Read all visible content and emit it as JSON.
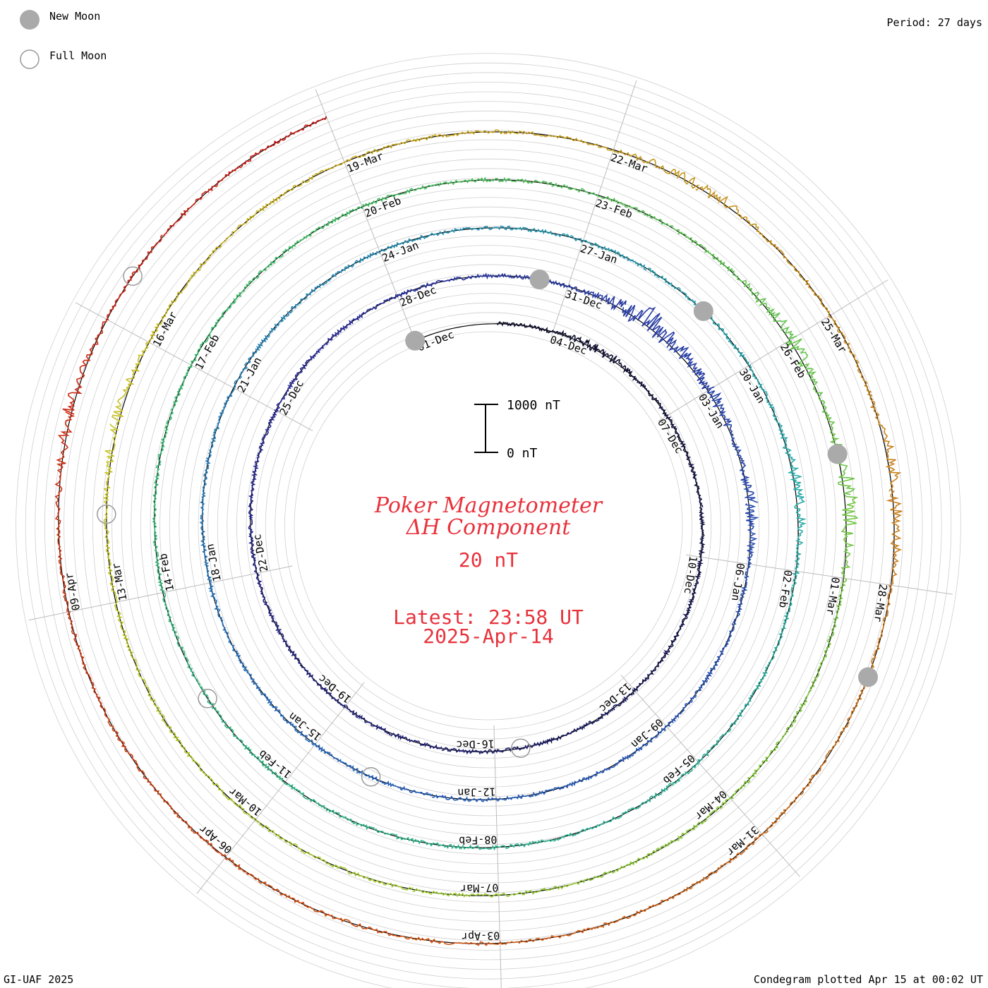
{
  "header": {
    "legend_new_moon": "New Moon",
    "legend_full_moon": "Full Moon",
    "period": "Period: 27 days"
  },
  "footer": {
    "credit": "GI-UAF 2025",
    "plotted": "Condegram plotted Apr 15 at 00:02 UT"
  },
  "center": {
    "title_line1": "Poker Magnetometer",
    "title_line2": "ΔH Component",
    "scale_value": "20 nT",
    "latest_line1": "Latest: 23:58 UT",
    "latest_line2": "2025-Apr-14",
    "scale_bar_top": "1000 nT",
    "scale_bar_bottom": "0 nT"
  },
  "colors": {
    "title": "#e8323c",
    "grid": "#bbbbbb",
    "moon_new": "#aaaaaa",
    "moon_full": "#999999"
  },
  "chart_data": {
    "type": "line",
    "title": "Poker Magnetometer ΔH Component",
    "period_days": 27,
    "scale_nT": 20,
    "spiral_labels": [
      {
        "label": "01-Dec",
        "day": 0
      },
      {
        "label": "04-Dec",
        "day": 3
      },
      {
        "label": "07-Dec",
        "day": 6
      },
      {
        "label": "10-Dec",
        "day": 9
      },
      {
        "label": "13-Dec",
        "day": 12
      },
      {
        "label": "16-Dec",
        "day": 15
      },
      {
        "label": "19-Dec",
        "day": 18
      },
      {
        "label": "22-Dec",
        "day": 21
      },
      {
        "label": "25-Dec",
        "day": 24
      },
      {
        "label": "28-Dec",
        "day": 27
      },
      {
        "label": "31-Dec",
        "day": 30
      },
      {
        "label": "03-Jan",
        "day": 33
      },
      {
        "label": "06-Jan",
        "day": 36
      },
      {
        "label": "09-Jan",
        "day": 39
      },
      {
        "label": "12-Jan",
        "day": 42
      },
      {
        "label": "15-Jan",
        "day": 45
      },
      {
        "label": "18-Jan",
        "day": 48
      },
      {
        "label": "21-Jan",
        "day": 51
      },
      {
        "label": "24-Jan",
        "day": 54
      },
      {
        "label": "27-Jan",
        "day": 57
      },
      {
        "label": "30-Jan",
        "day": 60
      },
      {
        "label": "02-Feb",
        "day": 63
      },
      {
        "label": "05-Feb",
        "day": 66
      },
      {
        "label": "08-Feb",
        "day": 69
      },
      {
        "label": "11-Feb",
        "day": 72
      },
      {
        "label": "14-Feb",
        "day": 75
      },
      {
        "label": "17-Feb",
        "day": 78
      },
      {
        "label": "20-Feb",
        "day": 81
      },
      {
        "label": "23-Feb",
        "day": 84
      },
      {
        "label": "26-Feb",
        "day": 87
      },
      {
        "label": "01-Mar",
        "day": 90
      },
      {
        "label": "04-Mar",
        "day": 93
      },
      {
        "label": "07-Mar",
        "day": 96
      },
      {
        "label": "10-Mar",
        "day": 99
      },
      {
        "label": "13-Mar",
        "day": 102
      },
      {
        "label": "16-Mar",
        "day": 105
      },
      {
        "label": "19-Mar",
        "day": 108
      },
      {
        "label": "22-Mar",
        "day": 111
      },
      {
        "label": "25-Mar",
        "day": 114
      },
      {
        "label": "28-Mar",
        "day": 117
      },
      {
        "label": "31-Mar",
        "day": 120
      },
      {
        "label": "03-Apr",
        "day": 123
      },
      {
        "label": "06-Apr",
        "day": 126
      },
      {
        "label": "09-Apr",
        "day": 129
      }
    ],
    "new_moon_days": [
      0,
      29.5,
      59,
      88.5,
      118
    ],
    "full_moon_days": [
      14.5,
      44,
      73.5,
      103,
      132.5
    ],
    "series_days_total": 135,
    "disturbances": [
      {
        "day": 4,
        "amp_nT": 200
      },
      {
        "day": 31.5,
        "amp_nT": 600
      },
      {
        "day": 33,
        "amp_nT": 300
      },
      {
        "day": 35,
        "amp_nT": 250
      },
      {
        "day": 62,
        "amp_nT": 250
      },
      {
        "day": 87,
        "amp_nT": 350
      },
      {
        "day": 89,
        "amp_nT": 400
      },
      {
        "day": 104,
        "amp_nT": 250
      },
      {
        "day": 112,
        "amp_nT": 250
      },
      {
        "day": 116,
        "amp_nT": 300
      },
      {
        "day": 131,
        "amp_nT": 250
      }
    ]
  }
}
